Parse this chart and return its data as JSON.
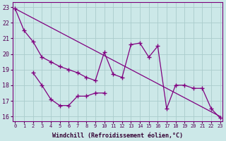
{
  "xlabel": "Windchill (Refroidissement éolien,°C)",
  "background_color": "#cce8e8",
  "line_color": "#800080",
  "grid_color": "#aacccc",
  "ylim": [
    15.7,
    23.3
  ],
  "xlim": [
    -0.3,
    23.3
  ],
  "yticks": [
    16,
    17,
    18,
    19,
    20,
    21,
    22,
    23
  ],
  "xticks": [
    0,
    1,
    2,
    3,
    4,
    5,
    6,
    7,
    8,
    9,
    10,
    11,
    12,
    13,
    14,
    15,
    16,
    17,
    18,
    19,
    20,
    21,
    22,
    23
  ],
  "line_jagged_x": [
    0,
    1,
    2,
    3,
    4,
    5,
    6,
    7,
    8,
    9,
    10,
    11,
    12,
    13,
    14,
    15,
    16,
    17,
    18,
    19,
    20,
    21,
    22,
    23
  ],
  "line_jagged_y": [
    22.9,
    21.5,
    20.8,
    19.8,
    19.5,
    19.2,
    19.0,
    18.8,
    18.5,
    18.3,
    20.1,
    18.7,
    18.5,
    20.6,
    20.7,
    19.8,
    20.5,
    16.5,
    18.0,
    18.0,
    17.8,
    17.8,
    16.5,
    15.9
  ],
  "line_trend_x": [
    0,
    23
  ],
  "line_trend_y": [
    22.9,
    16.0
  ],
  "line_short_x": [
    2,
    3,
    4,
    5,
    6,
    7,
    8,
    9,
    10
  ],
  "line_short_y": [
    18.8,
    18.0,
    17.1,
    16.7,
    16.7,
    17.3,
    17.3,
    17.5,
    17.5
  ]
}
